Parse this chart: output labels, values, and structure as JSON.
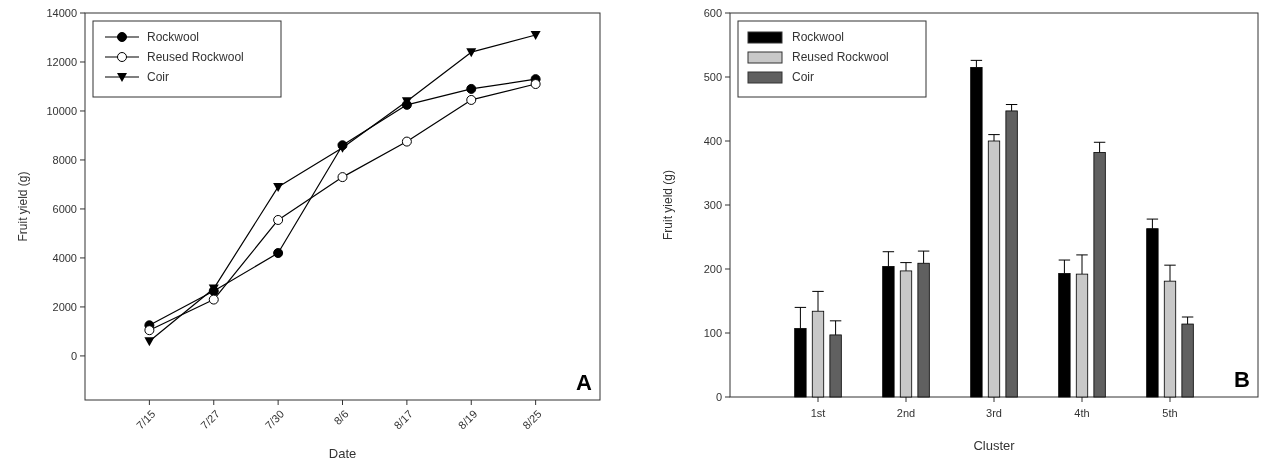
{
  "chart_data": [
    {
      "type": "line",
      "xlabel": "Date",
      "ylabel": "Fruit yield (g)",
      "categories": [
        "7/15",
        "7/27",
        "7/30",
        "8/6",
        "8/17",
        "8/19",
        "8/25"
      ],
      "series": [
        {
          "name": "Rockwool",
          "color": "#000000",
          "marker": "circle",
          "values": [
            1250,
            2650,
            4200,
            8600,
            10250,
            10900,
            11300
          ]
        },
        {
          "name": "Reused Rockwool",
          "color": "#000000",
          "marker": "circle-open",
          "values": [
            1050,
            2300,
            5550,
            7300,
            8750,
            10450,
            11100
          ]
        },
        {
          "name": "Coir",
          "color": "#000000",
          "marker": "triangle",
          "values": [
            600,
            2750,
            6900,
            8500,
            10400,
            12400,
            13100
          ]
        }
      ],
      "ylim": [
        -1800,
        14000
      ],
      "yticks": [
        0,
        2000,
        4000,
        6000,
        8000,
        10000,
        12000,
        14000
      ],
      "legend": "top left",
      "grid": false,
      "annotations": [
        "A"
      ]
    },
    {
      "type": "bar",
      "xlabel": "Cluster",
      "ylabel": "Fruit yield (g)",
      "categories": [
        "1st",
        "2nd",
        "3rd",
        "4th",
        "5th"
      ],
      "series": [
        {
          "name": "Rockwool",
          "color": "#000000",
          "values": [
            107,
            204,
            515,
            193,
            263
          ],
          "errors": [
            [
              107,
              140
            ],
            [
              204,
              227
            ],
            [
              515,
              526
            ],
            [
              193,
              214
            ],
            [
              263,
              278
            ]
          ]
        },
        {
          "name": "Reused Rockwool",
          "color": "#c8c8c8",
          "values": [
            134,
            197,
            400,
            192,
            181
          ],
          "errors": [
            [
              134,
              165
            ],
            [
              197,
              210
            ],
            [
              400,
              410
            ],
            [
              192,
              222
            ],
            [
              181,
              206
            ]
          ]
        },
        {
          "name": "Coir",
          "color": "#606060",
          "values": [
            97,
            209,
            447,
            382,
            114
          ],
          "errors": [
            [
              97,
              119
            ],
            [
              209,
              228
            ],
            [
              447,
              457
            ],
            [
              382,
              398
            ],
            [
              114,
              125
            ]
          ]
        }
      ],
      "ylim": [
        0,
        600
      ],
      "yticks": [
        0,
        100,
        200,
        300,
        400,
        500,
        600
      ],
      "legend": "top left",
      "grid": false,
      "annotations": [
        "B"
      ]
    }
  ]
}
